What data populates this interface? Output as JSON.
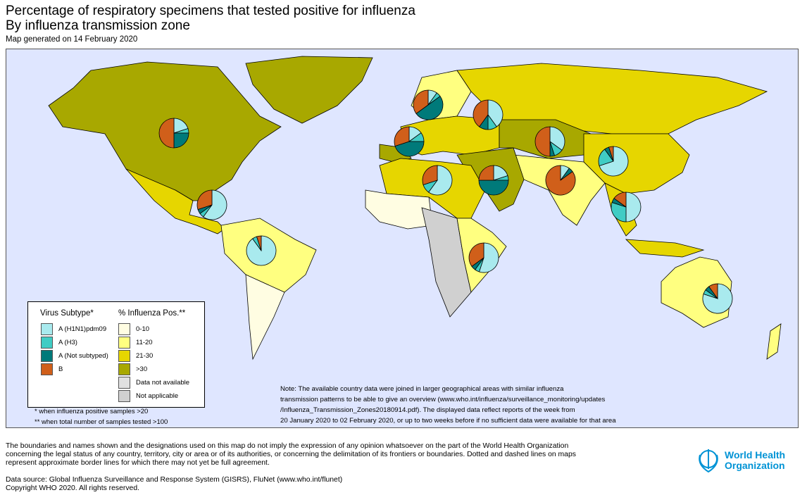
{
  "header": {
    "title": "Percentage of respiratory specimens that tested positive for influenza",
    "subtitle": "By influenza transmission zone",
    "generated": "Map generated on 14 February 2020"
  },
  "colors": {
    "ocean": "#dfe6ff",
    "h1n1": "#a9eaee",
    "h3": "#40ccc4",
    "not_subtyped": "#007a7a",
    "b": "#d05f1a",
    "pos_0_10": "#fffde2",
    "pos_11_20": "#ffff80",
    "pos_21_30": "#e6d600",
    "pos_gt30": "#a8a800",
    "na": "#e0e0e0",
    "not_applicable": "#d0d0d0"
  },
  "legend": {
    "subtype_title": "Virus Subtype*",
    "pos_title": "% Influenza Pos.**",
    "subtypes": [
      "A (H1N1)pdm09",
      "A (H3)",
      "A (Not subtyped)",
      "B"
    ],
    "pos_classes": [
      "0-10",
      "11-20",
      "21-30",
      ">30",
      "Data not available",
      "Not applicable"
    ],
    "footnote1": "* when influenza positive samples >20",
    "footnote2": "** when total number of samples tested >100"
  },
  "note": [
    "Note: The available country data were joined in larger geographical areas with similar influenza",
    "transmission patterns to be able to give an overview (www.who.int/influenza/surveillance_monitoring/updates",
    "/Influenza_Transmission_Zones20180914.pdf). The displayed data reflect reports of the week from",
    "20 January 2020 to 02 February 2020, or up to two weeks before if no sufficient data were available for that area"
  ],
  "disclaimer": [
    "The boundaries and names shown and the designations used on this map do not imply the expression of any opinion whatsoever on the part of the World Health Organization",
    "concerning the legal status of any country, territory, city or area or of its authorities, or concerning the delimitation of its frontiers or boundaries. Dotted and dashed lines on maps",
    "represent approximate border lines for which there may not yet be full agreement."
  ],
  "source": [
    "Data source: Global Influenza Surveillance and Response System (GISRS), FluNet (www.who.int/flunet)",
    "Copyright WHO 2020. All rights reserved."
  ],
  "logo": {
    "line1": "World Health",
    "line2": "Organization"
  },
  "pies": [
    {
      "zone": "North America",
      "fractions": [
        0.2,
        0.05,
        0.25,
        0.5
      ]
    },
    {
      "zone": "Central America and Caribbean",
      "fractions": [
        0.6,
        0.05,
        0.05,
        0.3
      ]
    },
    {
      "zone": "Tropical South America",
      "fractions": [
        0.9,
        0.05,
        0,
        0.05
      ]
    },
    {
      "zone": "Northern Europe",
      "fractions": [
        0.1,
        0.05,
        0.5,
        0.35
      ]
    },
    {
      "zone": "Eastern Europe",
      "fractions": [
        0.4,
        0.1,
        0.1,
        0.4
      ]
    },
    {
      "zone": "South West Europe",
      "fractions": [
        0.15,
        0.1,
        0.45,
        0.3
      ]
    },
    {
      "zone": "Northern Africa",
      "fractions": [
        0.6,
        0.1,
        0,
        0.3
      ]
    },
    {
      "zone": "Western Asia",
      "fractions": [
        0.2,
        0.05,
        0.5,
        0.25
      ]
    },
    {
      "zone": "Central Asia",
      "fractions": [
        0.35,
        0.1,
        0.05,
        0.5
      ]
    },
    {
      "zone": "Southern Asia",
      "fractions": [
        0.1,
        0,
        0.05,
        0.85
      ]
    },
    {
      "zone": "Eastern Asia",
      "fractions": [
        0.7,
        0.2,
        0.05,
        0.05
      ]
    },
    {
      "zone": "South-East Asia",
      "fractions": [
        0.5,
        0.3,
        0.05,
        0.15
      ]
    },
    {
      "zone": "Eastern Africa",
      "fractions": [
        0.55,
        0.05,
        0.05,
        0.35
      ]
    },
    {
      "zone": "Oceania",
      "fractions": [
        0.8,
        0.05,
        0.05,
        0.1
      ]
    }
  ]
}
